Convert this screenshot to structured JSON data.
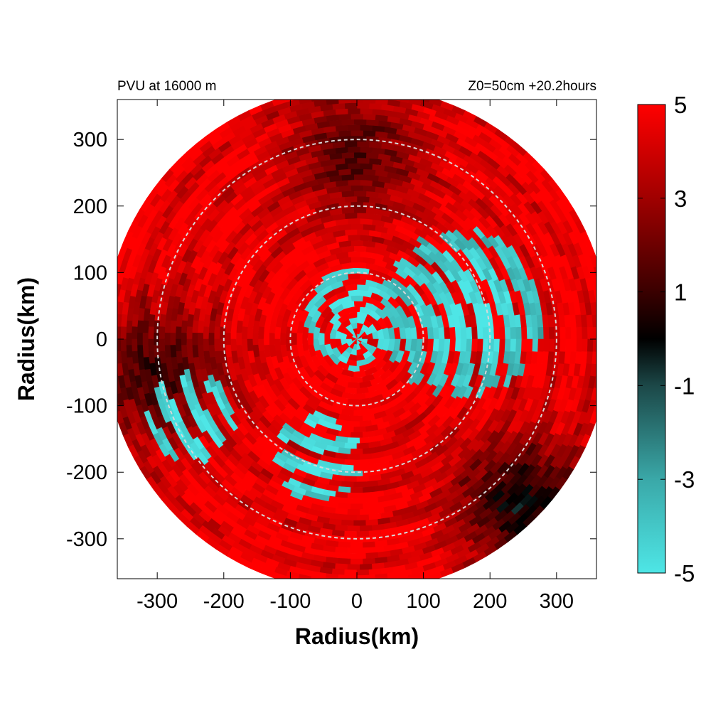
{
  "chart_data": {
    "type": "heatmap",
    "title_left": "PVU at 16000 m",
    "title_right": "Z0=50cm  +20.2hours",
    "xlabel": "Radius(km)",
    "ylabel": "Radius(km)",
    "xlim": [
      -360,
      360
    ],
    "ylim": [
      -360,
      360
    ],
    "x_ticks": [
      -300,
      -200,
      -100,
      0,
      100,
      200,
      300
    ],
    "y_ticks": [
      300,
      200,
      100,
      0,
      -100,
      -200,
      -300
    ],
    "x_tick_labels": [
      "-300",
      "-200",
      "-100",
      "0",
      "100",
      "200",
      "300"
    ],
    "y_tick_labels": [
      "300",
      "200",
      "100",
      "0",
      "-100",
      "-200",
      "-300"
    ],
    "domain_radius_km": 380,
    "range_rings_km": [
      100,
      200,
      300
    ],
    "colorbar": {
      "range": [
        -5,
        5
      ],
      "tick_values": [
        5,
        3,
        1,
        -1,
        -3,
        -5
      ],
      "tick_labels": [
        "5",
        "3",
        "1",
        "-1",
        "-3",
        "-5"
      ],
      "color_stops": [
        {
          "value": -5,
          "color": "#4ee6e6"
        },
        {
          "value": -3,
          "color": "#3aa8a8"
        },
        {
          "value": -1,
          "color": "#1c4848"
        },
        {
          "value": 0,
          "color": "#000000"
        },
        {
          "value": 1,
          "color": "#3a0000"
        },
        {
          "value": 3,
          "color": "#a00000"
        },
        {
          "value": 5,
          "color": "#ff0000"
        }
      ]
    },
    "field_description": {
      "background_value": 5,
      "negative_regions": [
        {
          "center_km": [
            160,
            40
          ],
          "value": -5,
          "extent": "large crescent east of center, 100-250 km"
        },
        {
          "center_km": [
            -10,
            30
          ],
          "value": -5,
          "extent": "scattered filaments within 100 km"
        },
        {
          "center_km": [
            -60,
            -180
          ],
          "value": -5,
          "extent": "scattered patches south-west"
        },
        {
          "center_km": [
            -250,
            -120
          ],
          "value": -5,
          "extent": "small patches west"
        }
      ],
      "weak_regions": [
        {
          "center_km": [
            0,
            280
          ],
          "value": 1.5,
          "extent": "dark red banding north"
        },
        {
          "center_km": [
            250,
            -250
          ],
          "value": 0,
          "extent": "dark patches south-east"
        },
        {
          "center_km": [
            -300,
            -50
          ],
          "value": 1,
          "extent": "dark patches west edge"
        }
      ]
    }
  }
}
